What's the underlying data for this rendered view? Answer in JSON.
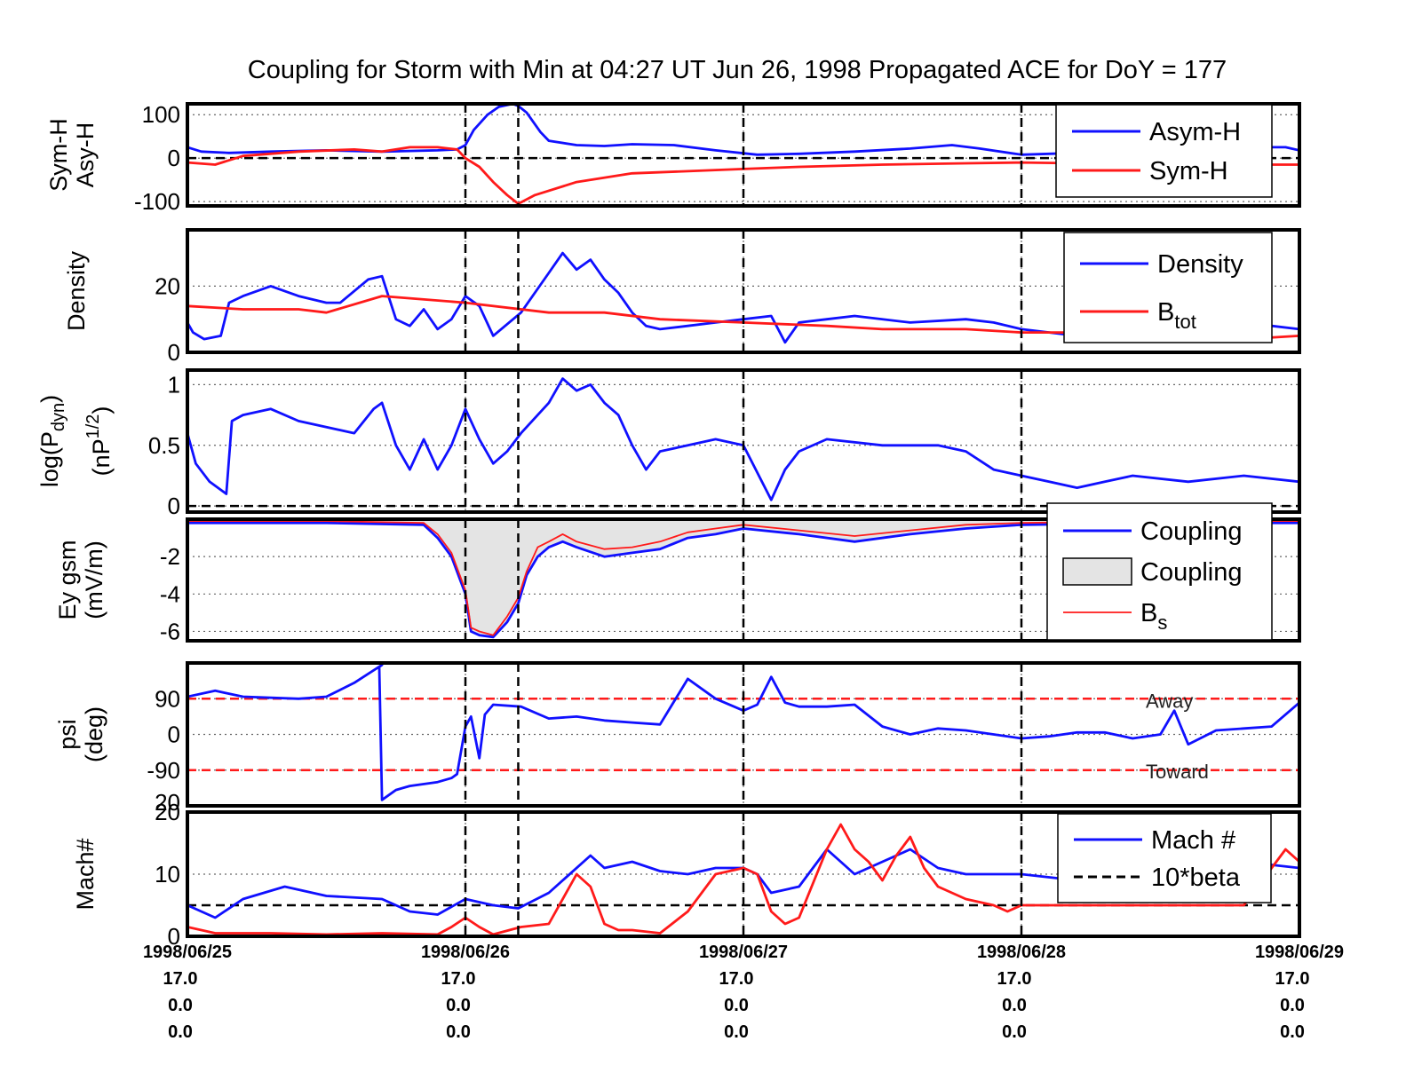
{
  "title": "Coupling for Storm with Min at 04:27 UT Jun 26, 1998  Propagated ACE for DoY = 177",
  "colors": {
    "blue": "#1010ff",
    "red": "#ff1a1a",
    "black": "#000000",
    "fill": "#e4e4e4",
    "grid": "#666666"
  },
  "x_axis": {
    "range": [
      0,
      4
    ],
    "vertical_markers": [
      1,
      1.19,
      2,
      3
    ],
    "ticks": [
      {
        "x": 0,
        "date": "1998/06/25",
        "l1": "17.0",
        "l2": "0.0",
        "l3": "0.0"
      },
      {
        "x": 1,
        "date": "1998/06/26",
        "l1": "17.0",
        "l2": "0.0",
        "l3": "0.0"
      },
      {
        "x": 2,
        "date": "1998/06/27",
        "l1": "17.0",
        "l2": "0.0",
        "l3": "0.0"
      },
      {
        "x": 3,
        "date": "1998/06/28",
        "l1": "17.0",
        "l2": "0.0",
        "l3": "0.0"
      },
      {
        "x": 4,
        "date": "1998/06/29",
        "l1": "17.0",
        "l2": "0.0",
        "l3": "0.0"
      }
    ]
  },
  "chart_data": [
    {
      "id": "symh",
      "type": "line",
      "ylabel": [
        "Sym-H",
        "Asy-H"
      ],
      "ylim": [
        -110,
        125
      ],
      "yticks": [
        {
          "v": 100,
          "label": "100"
        },
        {
          "v": 0,
          "label": "0"
        },
        {
          "v": -100,
          "label": "-100"
        }
      ],
      "hline": 0,
      "legend": {
        "position": "top-right",
        "items": [
          {
            "label": "Asym-H",
            "style": "blue"
          },
          {
            "label": "Sym-H",
            "style": "red"
          }
        ]
      },
      "series": [
        {
          "name": "Asym-H",
          "color": "blue",
          "x": [
            0,
            0.05,
            0.15,
            0.3,
            0.5,
            0.7,
            0.9,
            0.97,
            1.0,
            1.03,
            1.08,
            1.12,
            1.17,
            1.19,
            1.22,
            1.27,
            1.3,
            1.4,
            1.5,
            1.6,
            1.75,
            1.9,
            2.05,
            2.2,
            2.4,
            2.6,
            2.75,
            2.85,
            3.0,
            3.2,
            3.4,
            3.6,
            3.8,
            3.95,
            4.0
          ],
          "y": [
            25,
            15,
            12,
            15,
            18,
            15,
            18,
            20,
            30,
            65,
            100,
            118,
            125,
            120,
            105,
            60,
            40,
            30,
            28,
            32,
            30,
            18,
            8,
            10,
            15,
            22,
            30,
            22,
            8,
            12,
            10,
            20,
            25,
            25,
            18
          ]
        },
        {
          "name": "Sym-H",
          "color": "red",
          "x": [
            0,
            0.1,
            0.2,
            0.4,
            0.6,
            0.7,
            0.8,
            0.9,
            0.97,
            1.0,
            1.05,
            1.1,
            1.15,
            1.19,
            1.25,
            1.4,
            1.6,
            1.8,
            2.0,
            2.2,
            2.5,
            2.8,
            3.0,
            3.2,
            3.5,
            3.8,
            4.0
          ],
          "y": [
            -10,
            -15,
            5,
            15,
            20,
            15,
            25,
            25,
            20,
            0,
            -20,
            -55,
            -85,
            -105,
            -85,
            -55,
            -35,
            -30,
            -25,
            -20,
            -15,
            -12,
            -10,
            -12,
            -15,
            -15,
            -15
          ]
        }
      ]
    },
    {
      "id": "density",
      "type": "line",
      "ylabel": [
        "Density"
      ],
      "ylim": [
        0,
        37
      ],
      "yticks": [
        {
          "v": 20,
          "label": "20"
        },
        {
          "v": 0,
          "label": "0"
        }
      ],
      "legend": {
        "position": "top-right",
        "items": [
          {
            "label": "Density",
            "style": "blue"
          },
          {
            "label": "B",
            "sub": "tot",
            "style": "red"
          }
        ]
      },
      "series": [
        {
          "name": "Density",
          "color": "blue",
          "x": [
            0,
            0.02,
            0.06,
            0.12,
            0.15,
            0.2,
            0.3,
            0.4,
            0.5,
            0.55,
            0.65,
            0.7,
            0.75,
            0.8,
            0.85,
            0.9,
            0.95,
            1.0,
            1.05,
            1.1,
            1.2,
            1.3,
            1.35,
            1.4,
            1.45,
            1.5,
            1.55,
            1.6,
            1.65,
            1.7,
            1.8,
            1.9,
            2.0,
            2.1,
            2.15,
            2.2,
            2.3,
            2.4,
            2.6,
            2.8,
            2.9,
            3.0,
            3.1,
            3.2,
            3.3,
            3.5,
            3.7,
            3.9,
            4.0
          ],
          "y": [
            9,
            6,
            4,
            5,
            15,
            17,
            20,
            17,
            15,
            15,
            22,
            23,
            10,
            8,
            13,
            7,
            10,
            17,
            14,
            5,
            12,
            24,
            30,
            25,
            28,
            22,
            18,
            12,
            8,
            7,
            8,
            9,
            10,
            11,
            3,
            9,
            10,
            11,
            9,
            10,
            9,
            7,
            6,
            5,
            7,
            6,
            7,
            8,
            7
          ]
        },
        {
          "name": "B",
          "color": "red",
          "x": [
            0,
            0.2,
            0.4,
            0.5,
            0.7,
            1.0,
            1.3,
            1.5,
            1.7,
            2.0,
            2.3,
            2.5,
            2.8,
            3.0,
            3.3,
            3.6,
            3.8,
            4.0
          ],
          "y": [
            14,
            13,
            13,
            12,
            17,
            15,
            12,
            12,
            10,
            9,
            8,
            7,
            7,
            6,
            6,
            5,
            4,
            5
          ]
        }
      ]
    },
    {
      "id": "pdyn",
      "type": "line",
      "ylabel": [
        "log(P",
        "dyn",
        ")",
        "(nP",
        "1/2",
        ")"
      ],
      "ylim": [
        -0.05,
        1.12
      ],
      "yticks": [
        {
          "v": 1,
          "label": "1"
        },
        {
          "v": 0.5,
          "label": "0.5"
        },
        {
          "v": 0,
          "label": "0"
        }
      ],
      "hline": 0,
      "series": [
        {
          "name": "log(Pdyn)",
          "color": "blue",
          "x": [
            0,
            0.03,
            0.08,
            0.14,
            0.16,
            0.2,
            0.3,
            0.4,
            0.5,
            0.6,
            0.67,
            0.7,
            0.75,
            0.8,
            0.85,
            0.9,
            0.95,
            1.0,
            1.05,
            1.1,
            1.15,
            1.2,
            1.3,
            1.35,
            1.4,
            1.45,
            1.5,
            1.55,
            1.6,
            1.65,
            1.7,
            1.8,
            1.9,
            2.0,
            2.1,
            2.15,
            2.2,
            2.3,
            2.5,
            2.7,
            2.8,
            2.9,
            3.0,
            3.1,
            3.2,
            3.3,
            3.4,
            3.6,
            3.8,
            4.0
          ],
          "y": [
            0.6,
            0.35,
            0.2,
            0.1,
            0.7,
            0.75,
            0.8,
            0.7,
            0.65,
            0.6,
            0.8,
            0.85,
            0.5,
            0.3,
            0.55,
            0.3,
            0.5,
            0.8,
            0.55,
            0.35,
            0.45,
            0.6,
            0.85,
            1.05,
            0.95,
            1.0,
            0.85,
            0.75,
            0.5,
            0.3,
            0.45,
            0.5,
            0.55,
            0.5,
            0.05,
            0.3,
            0.45,
            0.55,
            0.5,
            0.5,
            0.45,
            0.3,
            0.25,
            0.2,
            0.15,
            0.2,
            0.25,
            0.2,
            0.25,
            0.2
          ]
        }
      ]
    },
    {
      "id": "ey",
      "type": "area",
      "ylabel": [
        "Ey gsm",
        "(mV/m)"
      ],
      "ylim": [
        -6.5,
        0
      ],
      "yticks": [
        {
          "v": -2,
          "label": "-2"
        },
        {
          "v": -4,
          "label": "-4"
        },
        {
          "v": -6,
          "label": "-6"
        }
      ],
      "legend": {
        "position": "top-right",
        "items": [
          {
            "label": "Coupling",
            "style": "blue"
          },
          {
            "label": "Coupling",
            "style": "fill"
          },
          {
            "label": "B",
            "sub": "s",
            "style": "thinred"
          }
        ]
      },
      "series": [
        {
          "name": "Coupling",
          "color": "blue",
          "x": [
            0,
            0.5,
            0.85,
            0.9,
            0.95,
            1.0,
            1.02,
            1.05,
            1.1,
            1.15,
            1.19,
            1.22,
            1.26,
            1.3,
            1.35,
            1.4,
            1.5,
            1.6,
            1.7,
            1.8,
            1.9,
            2.0,
            2.2,
            2.4,
            2.6,
            2.8,
            3.0,
            3.5,
            4.0
          ],
          "y": [
            -0.2,
            -0.2,
            -0.3,
            -1.0,
            -2.0,
            -4.0,
            -6.0,
            -6.2,
            -6.3,
            -5.5,
            -4.5,
            -3.0,
            -2.0,
            -1.5,
            -1.2,
            -1.5,
            -2.0,
            -1.8,
            -1.6,
            -1.0,
            -0.8,
            -0.5,
            -0.8,
            -1.2,
            -0.8,
            -0.5,
            -0.3,
            -0.2,
            -0.2
          ]
        },
        {
          "name": "B",
          "color": "red",
          "x": [
            0,
            0.5,
            0.85,
            0.9,
            0.95,
            1.0,
            1.02,
            1.05,
            1.1,
            1.15,
            1.19,
            1.22,
            1.26,
            1.3,
            1.35,
            1.4,
            1.5,
            1.6,
            1.7,
            1.8,
            1.9,
            2.0,
            2.2,
            2.4,
            2.6,
            2.8,
            3.0,
            3.5,
            4.0
          ],
          "y": [
            -0.1,
            -0.1,
            -0.2,
            -0.8,
            -1.8,
            -3.8,
            -5.8,
            -6.0,
            -6.2,
            -5.2,
            -4.2,
            -2.8,
            -1.5,
            -1.2,
            -0.8,
            -1.2,
            -1.6,
            -1.5,
            -1.2,
            -0.7,
            -0.5,
            -0.3,
            -0.6,
            -0.9,
            -0.6,
            -0.3,
            -0.2,
            -0.1,
            -0.1
          ]
        }
      ]
    },
    {
      "id": "psi",
      "type": "line",
      "ylabel": [
        "psi",
        "(deg)"
      ],
      "ylim": [
        -180,
        180
      ],
      "yticks": [
        {
          "v": 90,
          "label": "90"
        },
        {
          "v": 0,
          "label": "0"
        },
        {
          "v": -90,
          "label": "-90"
        }
      ],
      "extra_label": "20",
      "hlines": [
        {
          "v": 90,
          "label": "Away"
        },
        {
          "v": -90,
          "label": "Toward"
        }
      ],
      "series": [
        {
          "name": "psi",
          "color": "blue",
          "x": [
            0,
            0.1,
            0.2,
            0.4,
            0.5,
            0.6,
            0.7,
            0.69,
            0.7,
            0.75,
            0.8,
            0.9,
            0.95,
            0.97,
            1.0,
            1.02,
            1.05,
            1.07,
            1.1,
            1.2,
            1.3,
            1.4,
            1.5,
            1.6,
            1.7,
            1.8,
            1.9,
            2.0,
            2.05,
            2.1,
            2.15,
            2.2,
            2.3,
            2.4,
            2.5,
            2.6,
            2.7,
            2.8,
            2.9,
            3.0,
            3.1,
            3.2,
            3.3,
            3.4,
            3.5,
            3.55,
            3.6,
            3.7,
            3.8,
            3.9,
            4.0
          ],
          "y": [
            95,
            110,
            95,
            90,
            95,
            130,
            175,
            170,
            -165,
            -140,
            -130,
            -120,
            -110,
            -100,
            20,
            45,
            -60,
            50,
            75,
            70,
            40,
            45,
            35,
            30,
            25,
            140,
            90,
            60,
            75,
            145,
            80,
            70,
            70,
            75,
            20,
            0,
            15,
            10,
            0,
            -10,
            -5,
            5,
            5,
            -10,
            0,
            60,
            -25,
            10,
            15,
            20,
            80
          ]
        }
      ]
    },
    {
      "id": "mach",
      "type": "line",
      "ylabel": [
        "Mach#"
      ],
      "ylim": [
        0,
        20
      ],
      "yticks": [
        {
          "v": 20,
          "label": "20"
        },
        {
          "v": 10,
          "label": "10"
        },
        {
          "v": 0,
          "label": "0"
        }
      ],
      "hline": 5,
      "legend": {
        "position": "top-right",
        "items": [
          {
            "label": "Mach #",
            "style": "blue"
          },
          {
            "label": "10*beta",
            "style": "dashed"
          }
        ]
      },
      "series": [
        {
          "name": "Mach #",
          "color": "blue",
          "x": [
            0,
            0.1,
            0.2,
            0.35,
            0.5,
            0.7,
            0.8,
            0.9,
            1.0,
            1.1,
            1.19,
            1.3,
            1.45,
            1.5,
            1.6,
            1.7,
            1.8,
            1.9,
            2.0,
            2.05,
            2.1,
            2.2,
            2.3,
            2.35,
            2.4,
            2.5,
            2.6,
            2.7,
            2.8,
            2.9,
            3.0,
            3.2,
            3.5,
            3.8,
            4.0
          ],
          "y": [
            5,
            3,
            6,
            8,
            6.5,
            6,
            4,
            3.5,
            6,
            5,
            4.5,
            7,
            13,
            11,
            12,
            10.5,
            10,
            11,
            11,
            10,
            7,
            8,
            14,
            12,
            10,
            12,
            14,
            11,
            10,
            10,
            10,
            9,
            11,
            12,
            11
          ]
        },
        {
          "name": "10*beta",
          "color": "red",
          "x": [
            0,
            0.1,
            0.3,
            0.5,
            0.7,
            0.9,
            0.95,
            1.0,
            1.05,
            1.1,
            1.2,
            1.3,
            1.4,
            1.45,
            1.5,
            1.55,
            1.6,
            1.7,
            1.8,
            1.9,
            2.0,
            2.05,
            2.1,
            2.15,
            2.2,
            2.3,
            2.35,
            2.4,
            2.45,
            2.5,
            2.55,
            2.6,
            2.65,
            2.7,
            2.8,
            2.9,
            2.95,
            3.0,
            3.1,
            3.3,
            3.6,
            3.8,
            3.95,
            4.0
          ],
          "y": [
            1.5,
            0.5,
            0.5,
            0.3,
            0.5,
            0.3,
            1.5,
            3,
            1.5,
            0.3,
            1.5,
            2,
            10,
            8,
            2,
            1,
            1,
            0.5,
            4,
            10,
            11,
            10,
            4,
            2,
            3,
            14,
            18,
            14,
            12,
            9,
            13,
            16,
            11,
            8,
            6,
            5,
            4,
            5,
            5,
            5,
            5,
            5,
            14,
            12
          ]
        }
      ]
    }
  ]
}
